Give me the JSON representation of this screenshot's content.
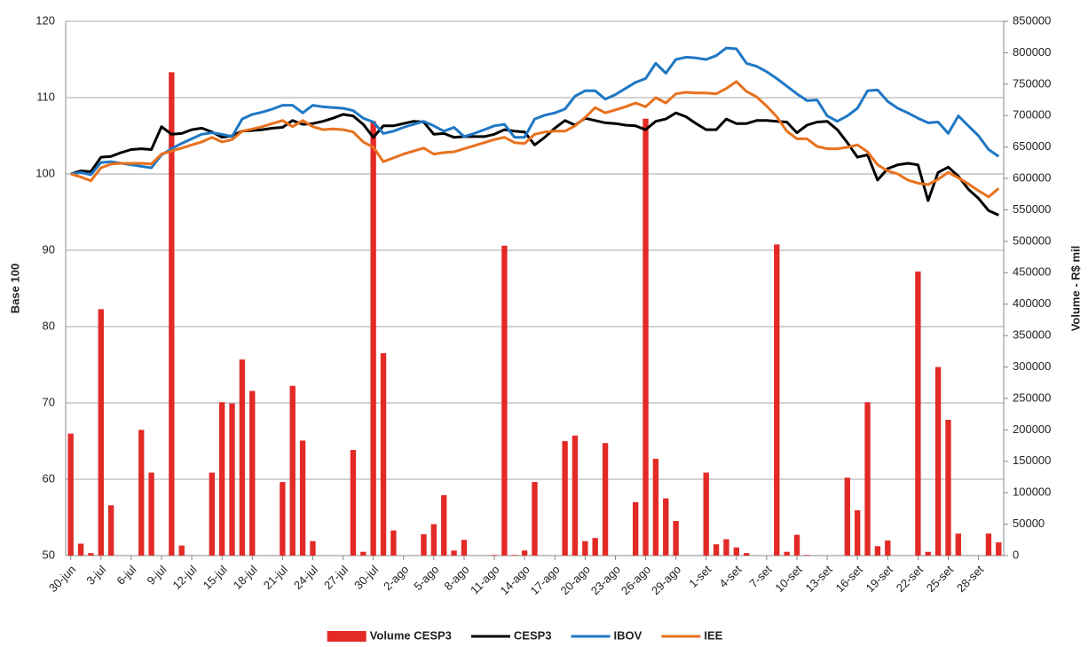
{
  "chart_data": {
    "type": "combo",
    "y_label": "Base 100",
    "y2_label": "Volume - R$ mil",
    "categories": [
      "30-jun",
      null,
      null,
      "3-jul",
      null,
      null,
      "6-jul",
      null,
      null,
      "9-jul",
      null,
      null,
      "12-jul",
      null,
      null,
      "15-jul",
      null,
      null,
      "18-jul",
      null,
      null,
      "21-jul",
      null,
      null,
      "24-jul",
      null,
      null,
      "27-jul",
      null,
      null,
      "30-jul",
      null,
      null,
      "2-ago",
      null,
      null,
      "5-ago",
      null,
      null,
      "8-ago",
      null,
      null,
      "11-ago",
      null,
      null,
      "14-ago",
      null,
      null,
      "17-ago",
      null,
      null,
      "20-ago",
      null,
      null,
      "23-ago",
      null,
      null,
      "26-ago",
      null,
      null,
      "29-ago",
      null,
      null,
      "1-set",
      null,
      null,
      "4-set",
      null,
      null,
      "7-set",
      null,
      null,
      "10-set",
      null,
      null,
      "13-set",
      null,
      null,
      "16-set",
      null,
      null,
      "19-set",
      null,
      null,
      "22-set",
      null,
      null,
      "25-set",
      null,
      null,
      "28-set",
      null,
      null
    ],
    "ylim": [
      50,
      120
    ],
    "yticks": [
      50,
      60,
      70,
      80,
      90,
      100,
      110,
      120
    ],
    "y2lim": [
      0,
      850000
    ],
    "y2ticks": [
      0,
      50000,
      100000,
      150000,
      200000,
      250000,
      300000,
      350000,
      400000,
      450000,
      500000,
      550000,
      600000,
      650000,
      700000,
      750000,
      800000,
      850000
    ],
    "grid": true,
    "legend": "bottom",
    "series": [
      {
        "name": "Volume CESP3",
        "type": "bar",
        "axis": "y2",
        "color": "#e32a27",
        "values": [
          194000,
          19000,
          4000,
          392000,
          80000,
          null,
          null,
          200000,
          132000,
          null,
          769000,
          16000,
          null,
          null,
          132000,
          244000,
          242000,
          312000,
          262000,
          null,
          null,
          117000,
          270000,
          183000,
          23000,
          null,
          null,
          null,
          168000,
          6000,
          691000,
          322000,
          40000,
          null,
          null,
          34000,
          50000,
          96000,
          8000,
          25000,
          null,
          null,
          1000,
          493000,
          1000,
          8000,
          117000,
          null,
          null,
          182000,
          191000,
          23000,
          28000,
          179000,
          null,
          null,
          85000,
          695000,
          154000,
          91000,
          55000,
          null,
          null,
          132000,
          18000,
          26000,
          13000,
          4000,
          null,
          null,
          495000,
          6000,
          33000,
          1000,
          null,
          null,
          null,
          124000,
          72000,
          244000,
          15000,
          24000,
          null,
          null,
          452000,
          6000,
          300000,
          216000,
          35000,
          null,
          null,
          35000,
          21000
        ]
      },
      {
        "name": "CESP3",
        "type": "line",
        "color": "#000000",
        "values": [
          100,
          100.4,
          100.3,
          102.2,
          102.3,
          102.8,
          103.2,
          103.3,
          103.2,
          106.2,
          105.2,
          105.3,
          105.8,
          106.0,
          105.5,
          104.8,
          105.0,
          105.6,
          105.7,
          105.8,
          106.0,
          106.1,
          107.0,
          106.5,
          106.6,
          106.9,
          107.3,
          107.8,
          107.6,
          106.5,
          104.8,
          106.3,
          106.3,
          106.6,
          106.9,
          106.8,
          105.2,
          105.3,
          104.8,
          104.9,
          104.9,
          104.9,
          105.2,
          105.8,
          105.6,
          105.5,
          103.8,
          104.8,
          106.0,
          107.0,
          106.4,
          107.3,
          107.0,
          106.7,
          106.6,
          106.4,
          106.3,
          105.8,
          106.9,
          107.2,
          108.0,
          107.5,
          106.6,
          105.8,
          105.8,
          107.2,
          106.6,
          106.6,
          107.0,
          107.0,
          106.9,
          106.8,
          105.4,
          106.4,
          106.8,
          106.9,
          105.8,
          104.1,
          102.2,
          102.5,
          99.2,
          100.7,
          101.2,
          101.4,
          101.2,
          96.5,
          100.2,
          100.9,
          99.7,
          98.0,
          96.8,
          95.2,
          94.6
        ]
      },
      {
        "name": "IBOV",
        "type": "line",
        "color": "#1f77c4",
        "values": [
          100,
          100.2,
          99.9,
          101.5,
          101.6,
          101.4,
          101.2,
          101.0,
          100.8,
          102.5,
          103.3,
          104.0,
          104.6,
          105.2,
          105.4,
          105.2,
          104.9,
          107.2,
          107.8,
          108.1,
          108.5,
          109.0,
          109.0,
          108.0,
          109.0,
          108.8,
          108.7,
          108.6,
          108.3,
          107.3,
          106.8,
          105.3,
          105.6,
          106.1,
          106.5,
          106.9,
          106.3,
          105.6,
          106.1,
          104.9,
          105.3,
          105.8,
          106.3,
          106.5,
          104.8,
          104.8,
          107.2,
          107.7,
          108.0,
          108.5,
          110.2,
          110.9,
          110.9,
          109.8,
          110.4,
          111.2,
          112.0,
          112.5,
          114.5,
          113.2,
          115.0,
          115.3,
          115.2,
          115.0,
          115.5,
          116.5,
          116.4,
          114.5,
          114.1,
          113.4,
          112.5,
          111.5,
          110.5,
          109.6,
          109.7,
          107.6,
          106.9,
          107.6,
          108.6,
          110.9,
          111.0,
          109.5,
          108.6,
          108.0,
          107.3,
          106.7,
          106.8,
          105.3,
          107.6,
          106.3,
          105.0,
          103.2,
          102.3
        ]
      },
      {
        "name": "IEE",
        "type": "line",
        "color": "#e8711e",
        "values": [
          100,
          99.6,
          99.1,
          100.8,
          101.3,
          101.4,
          101.4,
          101.4,
          101.3,
          102.6,
          103.0,
          103.4,
          103.8,
          104.2,
          104.8,
          104.2,
          104.5,
          105.6,
          105.9,
          106.2,
          106.6,
          107.0,
          106.2,
          107.0,
          106.2,
          105.8,
          105.9,
          105.8,
          105.5,
          104.2,
          103.5,
          101.6,
          102.1,
          102.6,
          103.0,
          103.4,
          102.6,
          102.8,
          102.9,
          103.3,
          103.7,
          104.1,
          104.5,
          104.8,
          104.1,
          104.0,
          105.2,
          105.5,
          105.6,
          105.6,
          106.3,
          107.4,
          108.7,
          108.0,
          108.4,
          108.8,
          109.3,
          108.8,
          110.0,
          109.3,
          110.5,
          110.7,
          110.6,
          110.6,
          110.5,
          111.2,
          112.1,
          110.8,
          110.1,
          108.9,
          107.5,
          105.6,
          104.6,
          104.6,
          103.6,
          103.3,
          103.3,
          103.5,
          103.8,
          102.9,
          101.2,
          100.4,
          100.0,
          99.2,
          98.8,
          98.6,
          99.3,
          100.2,
          99.5,
          98.7,
          97.8,
          97.0,
          98.1
        ]
      }
    ]
  }
}
